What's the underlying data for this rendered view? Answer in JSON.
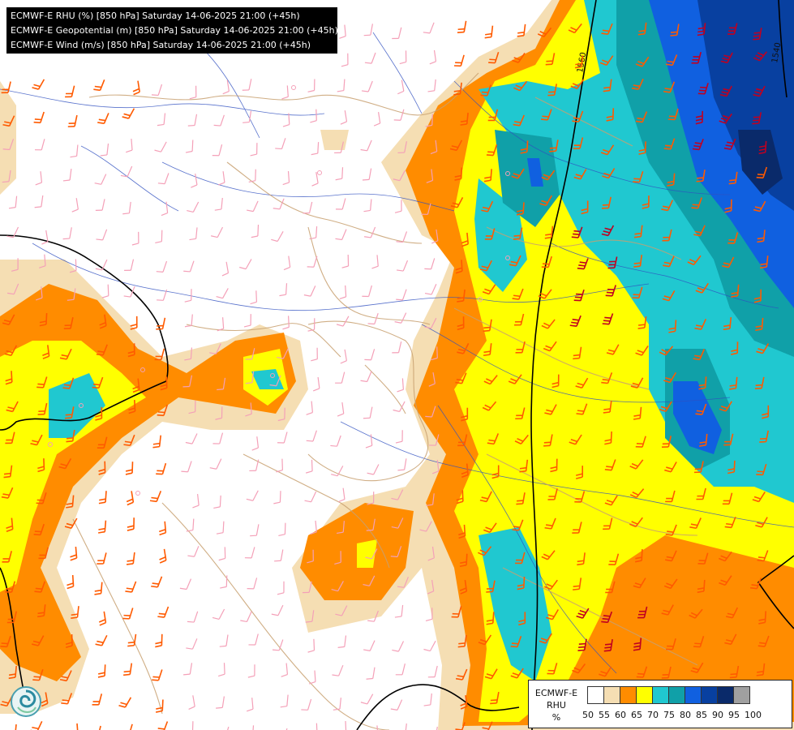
{
  "header": {
    "lines": [
      "ECMWF-E RHU (%) [850 hPa] Saturday 14-06-2025 21:00 (+45h)",
      "ECMWF-E Geopotential (m) [850 hPa] Saturday 14-06-2025 21:00 (+45h)",
      "ECMWF-E Wind (m/s) [850 hPa] Saturday 14-06-2025 21:00 (+45h)"
    ]
  },
  "legend": {
    "title_lines": [
      "ECMWF-E",
      "RHU",
      "%"
    ],
    "levels": [
      {
        "label": "50",
        "color": "#ffffff"
      },
      {
        "label": "55",
        "color": "#f5deb3"
      },
      {
        "label": "60",
        "color": "#ff8c00"
      },
      {
        "label": "65",
        "color": "#ffff00"
      },
      {
        "label": "70",
        "color": "#20c8d0"
      },
      {
        "label": "75",
        "color": "#10a0a8"
      },
      {
        "label": "80",
        "color": "#1060e0"
      },
      {
        "label": "85",
        "color": "#0840a0"
      },
      {
        "label": "90",
        "color": "#0a2a6a"
      },
      {
        "label": "95",
        "color": "#a0a0a0"
      },
      {
        "label": "100",
        "color": "#555555"
      }
    ]
  },
  "contours": {
    "labels": [
      "1560",
      "1540"
    ]
  },
  "colors": {
    "humidity_55": "#f5deb3",
    "humidity_60": "#ff8c00",
    "humidity_65": "#ffff00",
    "humidity_70": "#20c8d0",
    "humidity_75": "#10a0a8",
    "humidity_80": "#1060e0",
    "humidity_85": "#0840a0",
    "humidity_90": "#0a2a6a",
    "border": "#b08040",
    "river": "#3050c0",
    "barb_light": "#f4a0b8",
    "barb_medium": "#ff5a00",
    "barb_strong": "#c00020",
    "contour": "#000000"
  },
  "icons": {
    "logo": "swirl-logo-icon"
  }
}
